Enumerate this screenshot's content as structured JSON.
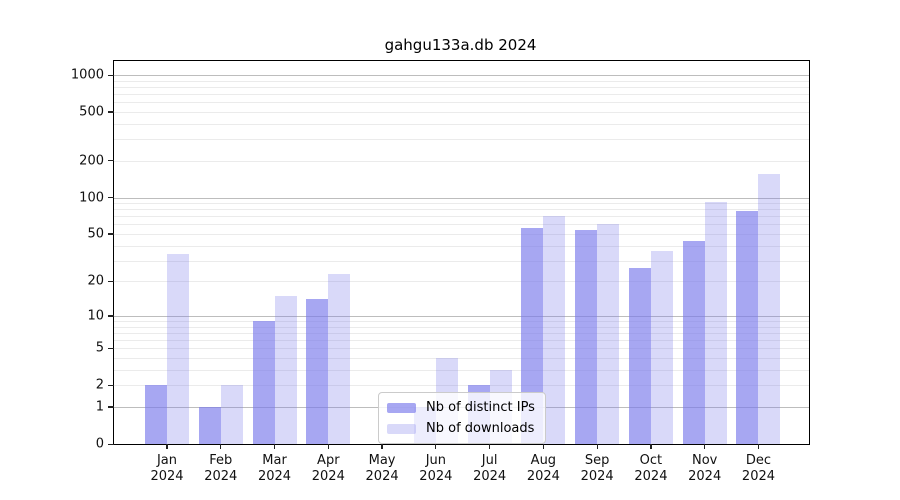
{
  "title": "gahgu133a.db 2024",
  "chart_data": {
    "type": "bar",
    "title": "gahgu133a.db 2024",
    "categories": [
      "Jan 2024",
      "Feb 2024",
      "Mar 2024",
      "Apr 2024",
      "May 2024",
      "Jun 2024",
      "Jul 2024",
      "Aug 2024",
      "Sep 2024",
      "Oct 2024",
      "Nov 2024",
      "Dec 2024"
    ],
    "x_tick_line1": [
      "Jan",
      "Feb",
      "Mar",
      "Apr",
      "May",
      "Jun",
      "Jul",
      "Aug",
      "Sep",
      "Oct",
      "Nov",
      "Dec"
    ],
    "x_tick_line2": [
      "2024",
      "2024",
      "2024",
      "2024",
      "2024",
      "2024",
      "2024",
      "2024",
      "2024",
      "2024",
      "2024",
      "2024"
    ],
    "series": [
      {
        "name": "Nb of distinct IPs",
        "color": "rgba(120,120,235,0.65)",
        "values": [
          2,
          1,
          9,
          14,
          0,
          1,
          2,
          56,
          54,
          26,
          44,
          78
        ]
      },
      {
        "name": "Nb of downloads",
        "color": "rgba(120,120,235,0.28)",
        "values": [
          34,
          2,
          15,
          23,
          0,
          4,
          3,
          71,
          60,
          36,
          92,
          155
        ]
      }
    ],
    "yscale": "log1p",
    "y_ticks": [
      0,
      1,
      2,
      5,
      10,
      20,
      50,
      100,
      200,
      500,
      1000
    ],
    "y_tick_labels": [
      "0",
      "1",
      "2",
      "5",
      "10",
      "20",
      "50",
      "100",
      "200",
      "500",
      "1000"
    ],
    "ylim": [
      0,
      1300
    ],
    "xlabel": "",
    "ylabel": "",
    "grid": true,
    "legend_position": "inside lower-center"
  },
  "legend": {
    "items": [
      {
        "label": "Nb of distinct IPs",
        "color": "rgba(120,120,235,0.65)"
      },
      {
        "label": "Nb of downloads",
        "color": "rgba(120,120,235,0.28)"
      }
    ]
  },
  "colors": {
    "bar_base": "#7878eb",
    "grid_major": "#bdbdbd",
    "grid_minor": "#ebebeb",
    "axis": "#000000",
    "background": "#ffffff"
  }
}
